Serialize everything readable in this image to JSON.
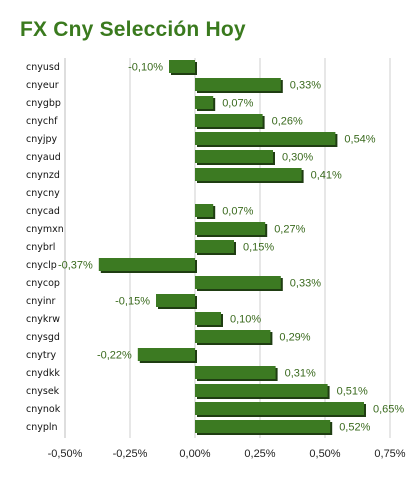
{
  "title": "FX Cny Selección Hoy",
  "colors": {
    "title": "#3a7a1e",
    "bar": "#3c7a22",
    "bar_shadow": "#1f3d12",
    "value_label": "#3a6a1e",
    "grid": "#cfcfcf"
  },
  "chart_data": {
    "type": "bar",
    "orientation": "horizontal",
    "title": "FX Cny Selección Hoy",
    "xlabel": "",
    "ylabel": "",
    "xlim": [
      -0.5,
      0.75
    ],
    "x_ticks": [
      -0.5,
      -0.25,
      0.0,
      0.25,
      0.5,
      0.75
    ],
    "x_tick_labels": [
      "-0,50%",
      "-0,25%",
      "0,00%",
      "0,25%",
      "0,50%",
      "0,75%"
    ],
    "grid": true,
    "legend": "none",
    "categories": [
      "cnyusd",
      "cnyeur",
      "cnygbp",
      "cnychf",
      "cnyjpy",
      "cnyaud",
      "cnynzd",
      "cnycny",
      "cnycad",
      "cnymxn",
      "cnybrl",
      "cnyclp",
      "cnycop",
      "cnyinr",
      "cnykrw",
      "cnysgd",
      "cnytry",
      "cnydkk",
      "cnysek",
      "cnynok",
      "cnypln"
    ],
    "values": [
      -0.1,
      0.33,
      0.07,
      0.26,
      0.54,
      0.3,
      0.41,
      null,
      0.07,
      0.27,
      0.15,
      -0.37,
      0.33,
      -0.15,
      0.1,
      0.29,
      -0.22,
      0.31,
      0.51,
      0.65,
      0.52
    ],
    "value_labels": [
      "-0,10%",
      "0,33%",
      "0,07%",
      "0,26%",
      "0,54%",
      "0,30%",
      "0,41%",
      "",
      "0,07%",
      "0,27%",
      "0,15%",
      "-0,37%",
      "0,33%",
      "-0,15%",
      "0,10%",
      "0,29%",
      "-0,22%",
      "0,31%",
      "0,51%",
      "0,65%",
      "0,52%"
    ]
  }
}
